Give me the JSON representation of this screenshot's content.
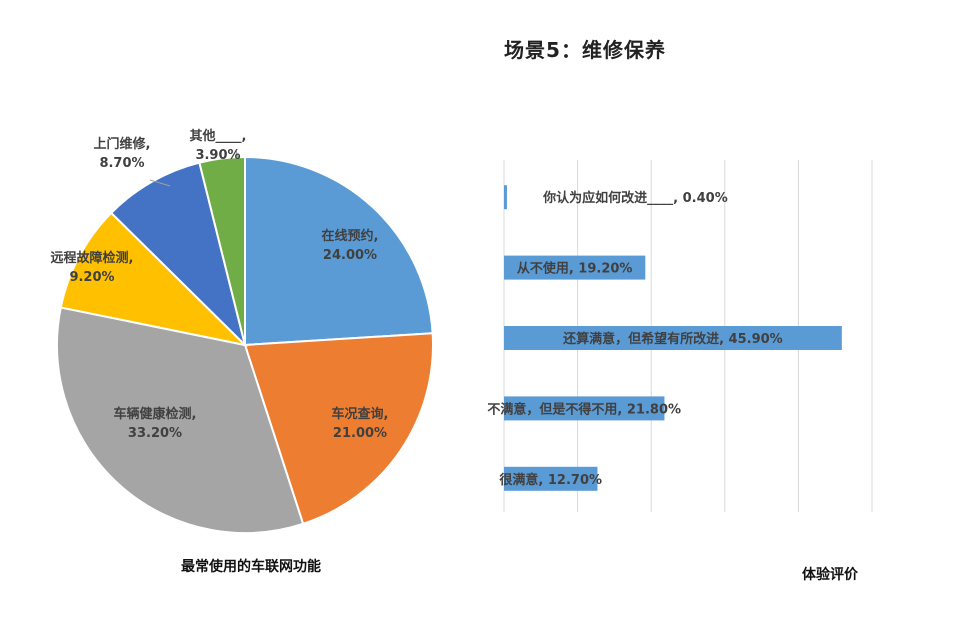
{
  "page": {
    "title": "场景5：维修保养"
  },
  "colors": {
    "blue": "#5b9bd5",
    "orange": "#ed7d31",
    "gray": "#a5a5a5",
    "gold": "#ffc000",
    "darkblue": "#4472c4",
    "green": "#70ad47"
  },
  "chart_data": [
    {
      "type": "pie",
      "title": "",
      "caption": "最常使用的车联网功能",
      "slices": [
        {
          "label": "在线预约",
          "value": 24.0,
          "display": "24.00%",
          "color": "#5b9bd5"
        },
        {
          "label": "车况查询",
          "value": 21.0,
          "display": "21.00%",
          "color": "#ed7d31"
        },
        {
          "label": "车辆健康检测",
          "value": 33.2,
          "display": "33.20%",
          "color": "#a5a5a5"
        },
        {
          "label": "远程故障检测",
          "value": 9.2,
          "display": "9.20%",
          "color": "#ffc000"
        },
        {
          "label": "上门维修",
          "value": 8.7,
          "display": "8.70%",
          "color": "#4472c4"
        },
        {
          "label": "其他____",
          "value": 3.9,
          "display": "3.90%",
          "color": "#70ad47"
        }
      ]
    },
    {
      "type": "bar",
      "orientation": "horizontal",
      "caption": "体验评价",
      "xlim": [
        0,
        50
      ],
      "grid": true,
      "categories": [
        "你认为应如何改进____",
        "从不使用",
        "还算满意，但希望有所改进",
        "不满意，但是不得不用",
        "很满意"
      ],
      "values": [
        0.4,
        19.2,
        45.9,
        21.8,
        12.7
      ],
      "display": [
        "0.40%",
        "19.20%",
        "45.90%",
        "21.80%",
        "12.70%"
      ],
      "color": "#5b9bd5"
    }
  ]
}
